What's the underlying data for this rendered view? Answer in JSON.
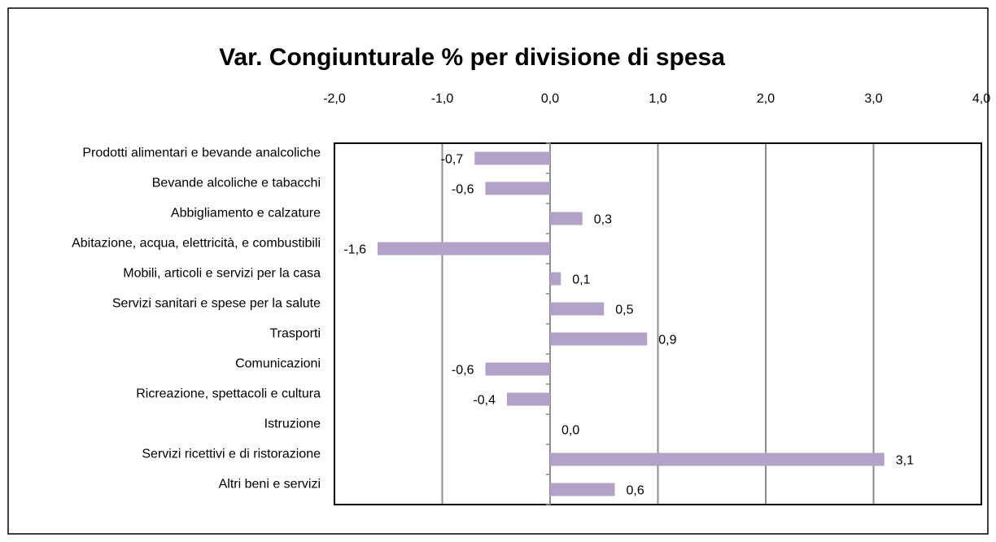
{
  "chart_data": {
    "type": "hbar",
    "title": "Var. Congiunturale % per divisione di spesa",
    "categories": [
      "Prodotti alimentari e bevande analcoliche",
      "Bevande alcoliche e tabacchi",
      "Abbigliamento e calzature",
      "Abitazione, acqua, elettricità, e combustibili",
      "Mobili, articoli e servizi per la casa",
      "Servizi sanitari e spese per la salute",
      "Trasporti",
      "Comunicazioni",
      "Ricreazione, spettacoli e cultura",
      "Istruzione",
      "Servizi ricettivi e di ristorazione",
      "Altri beni e servizi"
    ],
    "values": [
      -0.7,
      -0.6,
      0.3,
      -1.6,
      0.1,
      0.5,
      0.9,
      -0.6,
      -0.4,
      0.0,
      3.1,
      0.6
    ],
    "value_labels": [
      "-0,7",
      "-0,6",
      "0,3",
      "-1,6",
      "0,1",
      "0,5",
      "0,9",
      "-0,6",
      "-0,4",
      "0,0",
      "3,1",
      "0,6"
    ],
    "color": "#b3a2c7",
    "xlim": [
      -2,
      4
    ],
    "xticks": [
      {
        "value": -2,
        "label": "-2,0"
      },
      {
        "value": -1,
        "label": "-1,0"
      },
      {
        "value": 0,
        "label": "0,0"
      },
      {
        "value": 1,
        "label": "1,0"
      },
      {
        "value": 2,
        "label": "2,0"
      },
      {
        "value": 3,
        "label": "3,0"
      },
      {
        "value": 4,
        "label": "4,0"
      }
    ],
    "grid": true
  }
}
